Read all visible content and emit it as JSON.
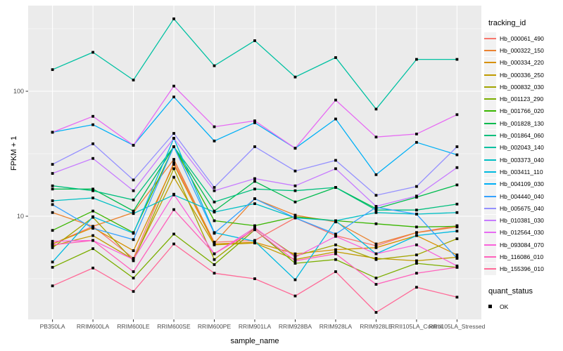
{
  "figure": {
    "bg": "#FFFFFF",
    "panel_bg": "#EBEBEB",
    "grid_major_color": "#FFFFFF",
    "grid_minor_color": "#F5F5F5",
    "axis_text_color": "#4D4D4D",
    "point_color": "#000000"
  },
  "chart_data": {
    "type": "line",
    "title": "",
    "xlabel": "sample_name",
    "ylabel": "FPKM + 1",
    "y_scale": "log10",
    "ylim": [
      1.5,
      480
    ],
    "y_ticks": [
      10,
      100
    ],
    "y_tick_labels": [
      "10",
      "100"
    ],
    "y_minor": [
      3.162,
      31.62,
      316.2
    ],
    "grid": "on",
    "legend_position": "right",
    "legend_title": "tracking_id",
    "legend2": {
      "title": "quant_status",
      "items": [
        {
          "label": "OK",
          "shape": "filled-square"
        }
      ]
    },
    "x_categories": [
      "PB350LA",
      "RRIM600LA",
      "RRIM600LE",
      "RRIM600SE",
      "RRIM600PE",
      "RRIM901LA",
      "RRIM928BA",
      "RRIM928LA",
      "RRIM928LE",
      "RRII105LA_Control",
      "RRII105LA_Stressed"
    ],
    "series": [
      {
        "name": "Hb_000061_490",
        "color": "#F8766D",
        "values": [
          6.0,
          8.3,
          4.6,
          27,
          6.2,
          6.4,
          9.7,
          7.0,
          5.8,
          7.4,
          8.4
        ]
      },
      {
        "name": "Hb_000322_150",
        "color": "#EA8331",
        "values": [
          10.7,
          8.3,
          10.7,
          28.5,
          6.1,
          13.8,
          10.2,
          9.0,
          6.0,
          7.4,
          8.2
        ]
      },
      {
        "name": "Hb_000334_220",
        "color": "#D89000",
        "values": [
          6.0,
          8.1,
          5.3,
          26,
          6.0,
          6.2,
          5.0,
          5.4,
          5.6,
          7.0,
          4.9
        ]
      },
      {
        "name": "Hb_000336_250",
        "color": "#C09B00",
        "values": [
          5.8,
          7.0,
          4.5,
          20.5,
          5.9,
          6.1,
          4.5,
          5.2,
          4.6,
          4.4,
          4.7
        ]
      },
      {
        "name": "Hb_000832_030",
        "color": "#A3A500",
        "values": [
          5.6,
          9.8,
          4.4,
          24,
          4.5,
          8.0,
          4.8,
          5.9,
          4.5,
          4.9,
          6.6
        ]
      },
      {
        "name": "Hb_001123_290",
        "color": "#7CAE00",
        "values": [
          3.9,
          5.5,
          3.2,
          7.2,
          4.1,
          7.8,
          4.2,
          4.5,
          3.2,
          4.2,
          3.9
        ]
      },
      {
        "name": "Hb_001766_020",
        "color": "#39B600",
        "values": [
          7.7,
          11.0,
          7.4,
          36,
          9.2,
          8.4,
          9.9,
          9.2,
          8.7,
          8.2,
          8.3
        ]
      },
      {
        "name": "Hb_001828_130",
        "color": "#00BB4E",
        "values": [
          16.5,
          16.5,
          11.0,
          36,
          11.0,
          19,
          13,
          17,
          11.5,
          14.2,
          17.8
        ]
      },
      {
        "name": "Hb_001864_060",
        "color": "#00BF7D",
        "values": [
          17.5,
          16.0,
          13.5,
          36,
          13.0,
          16.5,
          16.0,
          17.0,
          11.2,
          11.2,
          12.5
        ]
      },
      {
        "name": "Hb_002043_140",
        "color": "#00C1A2",
        "values": [
          149,
          205,
          123,
          380,
          160,
          254,
          130,
          186,
          72,
          180,
          180
        ]
      },
      {
        "name": "Hb_003373_040",
        "color": "#00BFC4",
        "values": [
          13.3,
          14.0,
          10.5,
          14.8,
          10.8,
          12.6,
          9.7,
          9.2,
          10.7,
          10.4,
          10.7
        ]
      },
      {
        "name": "Hb_003411_110",
        "color": "#00BAE0",
        "values": [
          4.3,
          9.9,
          7.3,
          42,
          7.4,
          6.3,
          3.1,
          9.2,
          5.0,
          7.0,
          7.6
        ]
      },
      {
        "name": "Hb_004109_030",
        "color": "#00B0F6",
        "values": [
          47,
          54,
          37,
          90,
          40,
          56,
          35,
          60,
          21.5,
          39,
          31
        ]
      },
      {
        "name": "Hb_004440_040",
        "color": "#35A2FF",
        "values": [
          12.4,
          8.0,
          6.5,
          36,
          7.3,
          13.8,
          9.7,
          7.2,
          11.8,
          10.4,
          4.6
        ]
      },
      {
        "name": "Hb_005675_040",
        "color": "#9590FF",
        "values": [
          26,
          38,
          19.5,
          46,
          17,
          36,
          23,
          28,
          14.7,
          17.3,
          36
        ]
      },
      {
        "name": "Hb_010381_030",
        "color": "#C77CFF",
        "values": [
          22,
          29,
          16,
          42,
          16,
          20,
          17.5,
          24,
          12,
          14.5,
          24.5
        ]
      },
      {
        "name": "Hb_012564_030",
        "color": "#E76BF3",
        "values": [
          47,
          63,
          37,
          110,
          52,
          58,
          35,
          85,
          43,
          45.5,
          65
        ]
      },
      {
        "name": "Hb_093084_070",
        "color": "#FA62DB",
        "values": [
          6.3,
          6.4,
          4.5,
          15,
          5.0,
          8.1,
          4.7,
          6.9,
          5.0,
          5.9,
          4.0
        ]
      },
      {
        "name": "Hb_116086_010",
        "color": "#FF62BC",
        "values": [
          5.9,
          6.4,
          3.6,
          11.3,
          5.0,
          7.8,
          4.4,
          5.0,
          2.85,
          3.5,
          3.9
        ]
      },
      {
        "name": "Hb_155396_010",
        "color": "#FF6A98",
        "values": [
          2.77,
          3.85,
          2.5,
          6.0,
          3.5,
          3.16,
          2.3,
          3.6,
          1.7,
          2.7,
          2.25
        ]
      }
    ]
  }
}
